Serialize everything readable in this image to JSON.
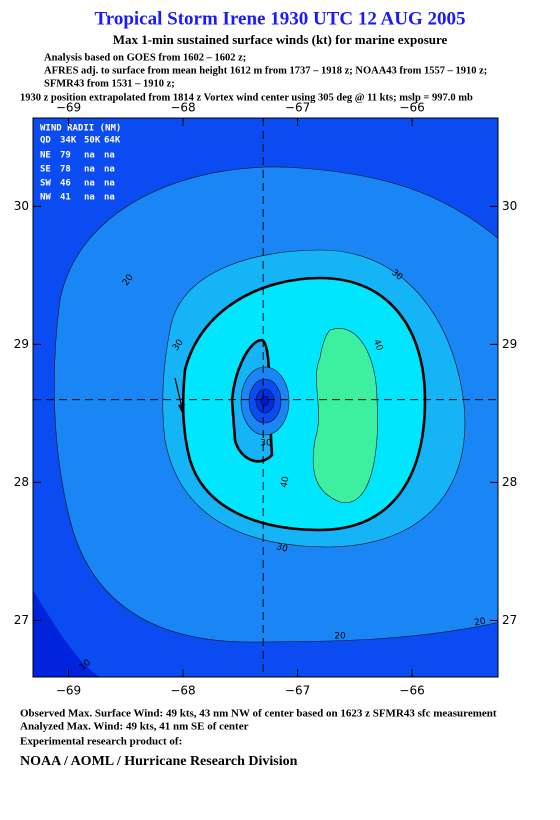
{
  "header": {
    "title": "Tropical Storm Irene 1930 UTC 12 AUG 2005",
    "subtitle": "Max 1-min sustained surface winds (kt) for marine exposure",
    "lines": [
      "Analysis based on  GOES from 1602 – 1602 z;",
      "AFRES adj. to surface from mean height 1612 m from 1737 – 1918 z;  NOAA43 from 1557 – 1910 z;",
      "SFMR43 from 1531 – 1910 z;",
      "1930 z position extrapolated from 1814 z Vortex wind center using 305 deg @ 11 kts; mslp = 997.0 mb"
    ]
  },
  "map": {
    "xlim": [
      -69.31,
      -65.25
    ],
    "ylim": [
      26.59,
      30.64
    ],
    "xticks": [
      {
        "value": -69,
        "label": "−69"
      },
      {
        "value": -68,
        "label": "−68"
      },
      {
        "value": -67,
        "label": "−67"
      },
      {
        "value": -66,
        "label": "−66"
      }
    ],
    "yticks": [
      27,
      28,
      29,
      30
    ],
    "center": {
      "lon": -67.3,
      "lat": 28.6
    },
    "contour_labels": [
      20,
      30,
      30,
      40,
      40,
      30,
      20,
      20,
      10,
      30
    ]
  },
  "wind_radii": {
    "title": "WIND RADII (NM)",
    "columns": [
      "QD",
      "34K",
      "50K",
      "64K"
    ],
    "rows": [
      [
        "NE",
        79,
        "na",
        "na"
      ],
      [
        "SE",
        78,
        "na",
        "na"
      ],
      [
        "SW",
        46,
        "na",
        "na"
      ],
      [
        "NW",
        41,
        "na",
        "na"
      ]
    ]
  },
  "footer": {
    "lines": [
      "Observed Max. Surface Wind: 49 kts, 43 nm NW of center based on 1623 z SFMR43 sfc measurement",
      "Analyzed Max. Wind: 49 kts, 41 nm SE of center",
      "Experimental research product of:"
    ],
    "org": "NOAA / AOML / Hurricane Research Division"
  }
}
